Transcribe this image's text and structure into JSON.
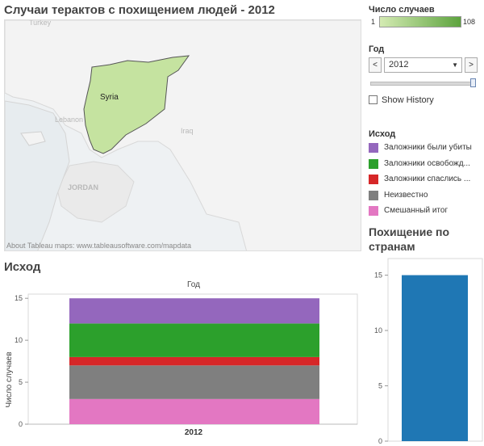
{
  "map": {
    "title": "Случаи терактов с похищением людей - 2012",
    "labels": {
      "syria": "Syria",
      "lebanon": "Lebanon",
      "iraq": "Iraq",
      "jordan": "JORDAN",
      "turkey": "Turkey"
    },
    "credit": "About Tableau maps: www.tableausoftware.com/mapdata",
    "fill_color": "#c5e3a0"
  },
  "controls": {
    "count_legend": {
      "title": "Число случаев",
      "min": "1",
      "max": "108"
    },
    "year": {
      "title": "Год",
      "selected": "2012",
      "prev": "<",
      "next": ">",
      "dropdown": "▼",
      "slider_fraction": 1.0
    },
    "history": {
      "label": "Show History",
      "checked": false
    }
  },
  "outcome_legend": {
    "title": "Исход",
    "items": [
      {
        "label": "Заложники были убиты",
        "color": "#9467bd"
      },
      {
        "label": "Заложники освобожд...",
        "color": "#2ca02c"
      },
      {
        "label": "Заложники спаслись ...",
        "color": "#d62728"
      },
      {
        "label": "Неизвестно",
        "color": "#7f7f7f"
      },
      {
        "label": "Смешанный итог",
        "color": "#e377c2"
      }
    ]
  },
  "outcome_chart": {
    "title": "Исход",
    "header": "Год",
    "ylabel": "Число случаев",
    "ticks": [
      "0",
      "5",
      "10",
      "15"
    ]
  },
  "bycountry_chart": {
    "title": "Похищение по странам",
    "ticks": [
      "0",
      "5",
      "10",
      "15"
    ]
  },
  "chart_data": [
    {
      "type": "bar",
      "stacked": true,
      "categories": [
        "2012"
      ],
      "ylim": [
        0,
        15.5
      ],
      "ylabel": "Число случаев",
      "series": [
        {
          "name": "Смешанный итог",
          "values": [
            3
          ],
          "color": "#e377c2"
        },
        {
          "name": "Неизвестно",
          "values": [
            4
          ],
          "color": "#7f7f7f"
        },
        {
          "name": "Заложники спаслись ...",
          "values": [
            1
          ],
          "color": "#d62728"
        },
        {
          "name": "Заложники освобожд...",
          "values": [
            4
          ],
          "color": "#2ca02c"
        },
        {
          "name": "Заложники были убиты",
          "values": [
            3
          ],
          "color": "#9467bd"
        }
      ]
    },
    {
      "type": "bar",
      "categories": [
        ""
      ],
      "values": [
        15
      ],
      "ylim": [
        0,
        16.5
      ],
      "color": "#1f77b4"
    }
  ]
}
